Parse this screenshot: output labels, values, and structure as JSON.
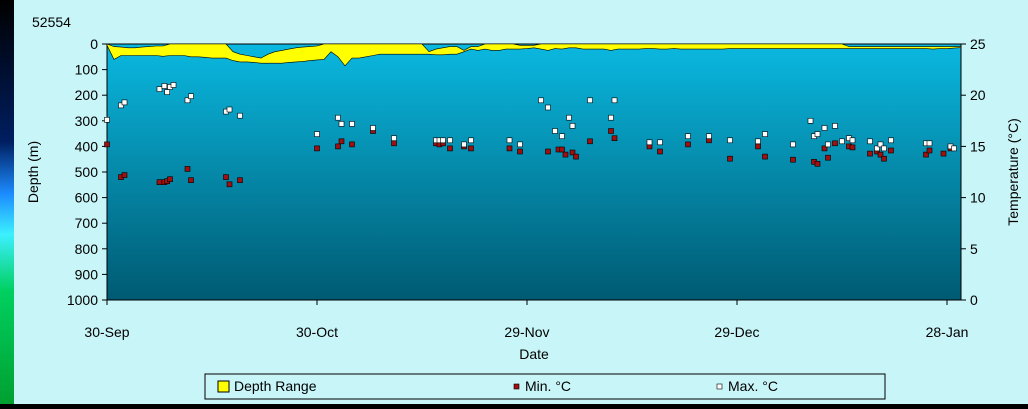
{
  "chart_data": {
    "type": "area+scatter",
    "title": "52554",
    "xlabel": "Date",
    "ylabel_left": "Depth (m)",
    "ylabel_right": "Temperature (°C)",
    "x_tick_labels": [
      "30-Sep",
      "30-Oct",
      "29-Nov",
      "29-Dec",
      "28-Jan"
    ],
    "x_tick_values": [
      0,
      30,
      60,
      90,
      120
    ],
    "xlim": [
      0,
      122
    ],
    "y_left_ticks": [
      "0",
      "100",
      "200",
      "300",
      "400",
      "500",
      "600",
      "700",
      "800",
      "900",
      "1000"
    ],
    "y_left_lim": [
      0,
      1000
    ],
    "y_left_inverted": true,
    "y_right_ticks": [
      "0",
      "5",
      "10",
      "15",
      "20",
      "25"
    ],
    "y_right_lim": [
      0,
      25
    ],
    "legend": {
      "position": "bottom",
      "entries": [
        {
          "label": "Depth Range",
          "marker": "box",
          "color": "#ffff00"
        },
        {
          "label": "Min. °C",
          "marker": "square",
          "color": "#a01010"
        },
        {
          "label": "Max. °C",
          "marker": "square",
          "color": "#ffffff"
        }
      ]
    },
    "colors": {
      "plot_bg_top": "#0ab8e0",
      "plot_bg_bottom": "#005a72",
      "depth_range": "#ffff00",
      "min_marker": "#a01010",
      "max_marker": "#ffffff"
    },
    "depth_range": {
      "x": [
        0,
        1,
        2,
        3,
        4,
        5,
        6,
        7,
        8,
        9,
        10,
        11,
        12,
        13,
        14,
        15,
        16,
        17,
        18,
        19,
        20,
        21,
        22,
        23,
        24,
        25,
        26,
        27,
        28,
        29,
        30,
        31,
        32,
        33,
        34,
        35,
        36,
        37,
        38,
        39,
        40,
        41,
        42,
        43,
        44,
        45,
        46,
        47,
        48,
        49,
        50,
        51,
        52,
        53,
        54,
        55,
        56,
        57,
        58,
        59,
        60,
        61,
        62,
        63,
        64,
        65,
        66,
        67,
        68,
        69,
        70,
        71,
        72,
        73,
        74,
        75,
        76,
        77,
        78,
        79,
        80,
        81,
        82,
        83,
        84,
        85,
        86,
        87,
        88,
        89,
        90,
        91,
        92,
        93,
        94,
        95,
        96,
        97,
        98,
        99,
        100,
        101,
        102,
        103,
        104,
        105,
        106,
        107,
        108,
        109,
        110,
        111,
        112,
        113,
        114,
        115,
        116,
        117,
        118,
        119,
        120,
        121,
        122
      ],
      "min": [
        0,
        10,
        12,
        15,
        15,
        12,
        10,
        8,
        8,
        0,
        0,
        0,
        0,
        0,
        0,
        0,
        0,
        0,
        30,
        40,
        45,
        50,
        55,
        40,
        30,
        25,
        20,
        15,
        12,
        10,
        8,
        0,
        0,
        0,
        0,
        0,
        0,
        0,
        0,
        0,
        0,
        0,
        0,
        0,
        0,
        0,
        30,
        20,
        15,
        10,
        10,
        25,
        10,
        10,
        0,
        0,
        0,
        0,
        0,
        5,
        5,
        5,
        0,
        0,
        0,
        0,
        0,
        0,
        0,
        0,
        0,
        0,
        0,
        0,
        0,
        0,
        0,
        0,
        0,
        0,
        0,
        0,
        0,
        0,
        0,
        0,
        0,
        0,
        0,
        0,
        0,
        0,
        0,
        0,
        0,
        0,
        0,
        0,
        0,
        0,
        0,
        0,
        0,
        0,
        0,
        0,
        10,
        10,
        10,
        10,
        10,
        10,
        10,
        10,
        10,
        10,
        10,
        10,
        10,
        10,
        10,
        10,
        10
      ],
      "max": [
        5,
        60,
        45,
        45,
        45,
        45,
        45,
        45,
        48,
        45,
        45,
        45,
        50,
        50,
        52,
        55,
        55,
        55,
        65,
        70,
        70,
        72,
        75,
        75,
        75,
        75,
        72,
        70,
        68,
        65,
        62,
        60,
        30,
        50,
        85,
        55,
        55,
        50,
        45,
        40,
        40,
        40,
        40,
        40,
        40,
        40,
        40,
        42,
        42,
        40,
        40,
        30,
        20,
        25,
        20,
        25,
        25,
        20,
        20,
        20,
        18,
        15,
        20,
        25,
        18,
        20,
        15,
        15,
        20,
        20,
        20,
        20,
        25,
        20,
        20,
        20,
        20,
        18,
        18,
        20,
        20,
        18,
        20,
        20,
        20,
        20,
        20,
        20,
        20,
        18,
        18,
        18,
        18,
        18,
        18,
        18,
        18,
        18,
        18,
        18,
        18,
        18,
        18,
        18,
        18,
        18,
        18,
        18,
        18,
        18,
        18,
        18,
        18,
        18,
        18,
        18,
        18,
        18,
        20,
        18,
        18,
        16,
        14
      ]
    },
    "series": [
      {
        "name": "Min. °C",
        "points": [
          [
            0,
            15.2
          ],
          [
            2,
            12.0
          ],
          [
            2.5,
            12.2
          ],
          [
            7.5,
            11.5
          ],
          [
            8.2,
            11.5
          ],
          [
            8.6,
            11.6
          ],
          [
            9,
            11.8
          ],
          [
            11.5,
            12.8
          ],
          [
            12,
            11.7
          ],
          [
            17,
            12.0
          ],
          [
            17.5,
            11.3
          ],
          [
            19,
            11.7
          ],
          [
            30,
            14.8
          ],
          [
            33,
            15.0
          ],
          [
            33.5,
            15.5
          ],
          [
            35,
            15.2
          ],
          [
            38,
            16.5
          ],
          [
            41,
            15.3
          ],
          [
            47,
            15.3
          ],
          [
            47.5,
            15.2
          ],
          [
            48,
            15.3
          ],
          [
            49,
            14.8
          ],
          [
            51,
            15.0
          ],
          [
            52,
            14.8
          ],
          [
            57.5,
            14.8
          ],
          [
            59,
            14.5
          ],
          [
            63,
            14.5
          ],
          [
            64.5,
            14.7
          ],
          [
            65,
            14.7
          ],
          [
            65.5,
            14.2
          ],
          [
            66.5,
            14.4
          ],
          [
            67,
            14.0
          ],
          [
            69,
            15.5
          ],
          [
            72,
            16.5
          ],
          [
            72.5,
            15.8
          ],
          [
            77.5,
            15.0
          ],
          [
            79,
            14.5
          ],
          [
            83,
            15.2
          ],
          [
            86,
            15.6
          ],
          [
            89,
            13.8
          ],
          [
            93,
            15.0
          ],
          [
            94,
            14.0
          ],
          [
            98,
            13.7
          ],
          [
            101,
            13.5
          ],
          [
            101.5,
            13.3
          ],
          [
            102.5,
            14.8
          ],
          [
            103,
            13.9
          ],
          [
            104,
            15.3
          ],
          [
            106,
            15.0
          ],
          [
            106.5,
            14.9
          ],
          [
            109,
            14.3
          ],
          [
            110,
            14.5
          ],
          [
            110.5,
            14.2
          ],
          [
            111,
            13.8
          ],
          [
            112,
            14.6
          ],
          [
            117,
            14.2
          ],
          [
            117.5,
            14.6
          ],
          [
            119.5,
            14.3
          ],
          [
            120.5,
            14.8
          ]
        ]
      },
      {
        "name": "Max. °C",
        "points": [
          [
            0,
            17.6
          ],
          [
            2,
            19.0
          ],
          [
            2.5,
            19.3
          ],
          [
            7.5,
            20.6
          ],
          [
            8.2,
            20.9
          ],
          [
            8.6,
            20.3
          ],
          [
            9,
            20.8
          ],
          [
            9.5,
            21.0
          ],
          [
            11.5,
            19.5
          ],
          [
            12,
            19.9
          ],
          [
            17,
            18.4
          ],
          [
            17.5,
            18.6
          ],
          [
            19,
            18.0
          ],
          [
            30,
            16.2
          ],
          [
            33,
            17.8
          ],
          [
            33.5,
            17.2
          ],
          [
            35,
            17.2
          ],
          [
            38,
            16.8
          ],
          [
            41,
            15.8
          ],
          [
            47,
            15.6
          ],
          [
            47.5,
            15.6
          ],
          [
            48,
            15.6
          ],
          [
            49,
            15.6
          ],
          [
            51,
            15.2
          ],
          [
            52,
            15.6
          ],
          [
            57.5,
            15.6
          ],
          [
            59,
            15.2
          ],
          [
            62,
            19.5
          ],
          [
            63,
            18.8
          ],
          [
            64,
            16.5
          ],
          [
            65,
            16.0
          ],
          [
            66,
            17.8
          ],
          [
            66.5,
            17.0
          ],
          [
            69,
            19.5
          ],
          [
            72,
            17.8
          ],
          [
            72.5,
            19.5
          ],
          [
            77.5,
            15.4
          ],
          [
            79,
            15.4
          ],
          [
            83,
            16.0
          ],
          [
            86,
            16.0
          ],
          [
            89,
            15.6
          ],
          [
            93,
            15.5
          ],
          [
            94,
            16.2
          ],
          [
            98,
            15.2
          ],
          [
            100.5,
            17.5
          ],
          [
            101,
            16.0
          ],
          [
            101.5,
            16.2
          ],
          [
            102.5,
            16.8
          ],
          [
            103,
            15.2
          ],
          [
            104,
            17.0
          ],
          [
            105,
            15.5
          ],
          [
            106,
            15.8
          ],
          [
            106.5,
            15.6
          ],
          [
            109,
            15.5
          ],
          [
            110,
            14.8
          ],
          [
            110.5,
            15.2
          ],
          [
            111,
            14.8
          ],
          [
            112,
            15.6
          ],
          [
            117,
            15.3
          ],
          [
            117.5,
            15.3
          ],
          [
            120.5,
            15.0
          ],
          [
            121,
            14.8
          ]
        ]
      }
    ]
  }
}
